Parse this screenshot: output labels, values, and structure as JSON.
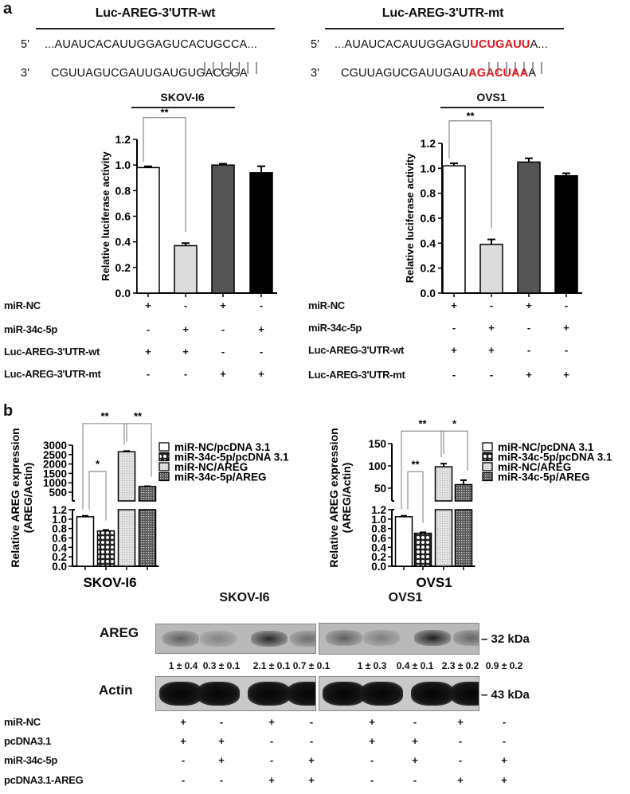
{
  "panel_a": {
    "label": "a",
    "wt": {
      "title": "Luc-AREG-3'UTR-wt",
      "five_prime": "5'",
      "seq5": "...AUAUCACAUUGGAGUCACUGCCA...",
      "three_prime": "3'",
      "seq3": "CGUUAGUCGAUUGAUGUGACGGA"
    },
    "mt": {
      "title": "Luc-AREG-3'UTR-mt",
      "five_prime": "5'",
      "seq5_pre": "...AUAUCACAUUGGAGU",
      "seq5_mut": "UCUGAUU",
      "seq5_post": "A...",
      "three_prime": "3'",
      "seq3_pre": "CGUUAGUCGAUUGAU",
      "seq3_mut": "AGACUAA",
      "seq3_post": "A"
    },
    "mutation_color": "#e8141b",
    "conditions": [
      {
        "label": "miR-NC",
        "values": [
          "+",
          "-",
          "+",
          "-"
        ]
      },
      {
        "label": "miR-34c-5p",
        "values": [
          "-",
          "+",
          "-",
          "+"
        ]
      },
      {
        "label": "Luc-AREG-3'UTR-wt",
        "values": [
          "+",
          "+",
          "-",
          "-"
        ]
      },
      {
        "label": "Luc-AREG-3'UTR-mt",
        "values": [
          "-",
          "-",
          "+",
          "+"
        ]
      }
    ]
  },
  "panel_b": {
    "label": "b",
    "legend": [
      {
        "label": "miR-NC/pcDNA 3.1",
        "pattern": "white"
      },
      {
        "label": "miR-34c-5p/pcDNA 3.1",
        "pattern": "checker"
      },
      {
        "label": "miR-NC/AREG",
        "pattern": "light-dots"
      },
      {
        "label": "miR-34c-5p/AREG",
        "pattern": "dark-hatch"
      }
    ]
  },
  "western": {
    "cell_lines": [
      "SKOV-I6",
      "OVS1"
    ],
    "areg_label": "AREG",
    "actin_label": "Actin",
    "areg_kda": "– 32 kDa",
    "actin_kda": "– 43 kDa",
    "quantification": [
      "1 ± 0.4",
      "0.3 ± 0.1",
      "2.1 ± 0.1",
      "0.7 ± 0.1",
      "1 ± 0.3",
      "0.4 ± 0.1",
      "2.3 ± 0.2",
      "0.9 ± 0.2"
    ],
    "areg_intensity": [
      1,
      0.3,
      2.1,
      0.7,
      1,
      0.4,
      2.3,
      0.9
    ],
    "conditions": [
      {
        "label": "miR-NC",
        "values": [
          "+",
          "-",
          "+",
          "-",
          "+",
          "-",
          "+",
          "-"
        ]
      },
      {
        "label": "pcDNA3.1",
        "values": [
          "+",
          "+",
          "-",
          "-",
          "+",
          "+",
          "-",
          "-"
        ]
      },
      {
        "label": "miR-34c-5p",
        "values": [
          "-",
          "+",
          "-",
          "+",
          "-",
          "+",
          "-",
          "+"
        ]
      },
      {
        "label": "pcDNA3.1-AREG",
        "values": [
          "-",
          "-",
          "+",
          "+",
          "-",
          "-",
          "+",
          "+"
        ]
      }
    ]
  },
  "chart_data": [
    {
      "type": "bar",
      "title": "SKOV-I6",
      "ylabel": "Relative luciferase activity",
      "ylim": [
        0,
        1.2
      ],
      "yticks": [
        "0.0",
        "0.2",
        "0.4",
        "0.6",
        "0.8",
        "1.0",
        "1.2"
      ],
      "values": [
        0.98,
        0.37,
        1.0,
        0.94
      ],
      "errors": [
        0.01,
        0.02,
        0.01,
        0.05
      ],
      "fills": [
        "#ffffff",
        "#dcdcdc",
        "#555555",
        "#000000"
      ],
      "significance": [
        {
          "from": 0,
          "to": 1,
          "label": "**",
          "level": 1.37
        }
      ]
    },
    {
      "type": "bar",
      "title": "OVS1",
      "ylabel": "Relative luciferase activity",
      "ylim": [
        0,
        1.2
      ],
      "yticks": [
        "0.0",
        "0.2",
        "0.4",
        "0.6",
        "0.8",
        "1.0",
        "1.2"
      ],
      "values": [
        1.02,
        0.39,
        1.05,
        0.94
      ],
      "errors": [
        0.02,
        0.04,
        0.03,
        0.02
      ],
      "fills": [
        "#ffffff",
        "#dcdcdc",
        "#555555",
        "#000000"
      ],
      "significance": [
        {
          "from": 0,
          "to": 1,
          "label": "**",
          "level": 1.38
        }
      ]
    },
    {
      "type": "bar",
      "xlabel": "SKOV-I6",
      "ylabel": "Relative  AREG expression",
      "ylabel2": "(AREG/Actin)",
      "broken_axis": true,
      "ylim_lower": [
        0,
        1.2
      ],
      "ylim_upper": [
        500,
        3000
      ],
      "yticks_lower": [
        "0.0",
        "0.2",
        "0.4",
        "0.6",
        "0.8",
        "1.0",
        "1.2"
      ],
      "yticks_upper": [
        "500",
        "1000",
        "1500",
        "2000",
        "2500",
        "3000"
      ],
      "values": [
        1.05,
        0.75,
        2650,
        800
      ],
      "errors": [
        0.02,
        0.02,
        40,
        15
      ],
      "significance": [
        {
          "from": 0,
          "to": 2,
          "label": "**",
          "level": 4150
        },
        {
          "from": 2,
          "to": 3,
          "label": "**",
          "level": 4150
        },
        {
          "from": 0,
          "to": 1,
          "label": "*",
          "level": 1600
        }
      ]
    },
    {
      "type": "bar",
      "xlabel": "OVS1",
      "ylabel": "Relative  AREG expression",
      "ylabel2": "(AREG/Actin)",
      "broken_axis": true,
      "ylim_lower": [
        0,
        1.2
      ],
      "ylim_upper": [
        50,
        150
      ],
      "yticks_lower": [
        "0.0",
        "0.2",
        "0.4",
        "0.6",
        "0.8",
        "1.0",
        "1.2"
      ],
      "yticks_upper": [
        "50",
        "100",
        "150"
      ],
      "values": [
        1.05,
        0.7,
        98,
        58
      ],
      "errors": [
        0.02,
        0.02,
        7,
        10
      ],
      "significance": [
        {
          "from": 0,
          "to": 2,
          "label": "**",
          "level": 178
        },
        {
          "from": 2,
          "to": 3,
          "label": "*",
          "level": 178
        },
        {
          "from": 0,
          "to": 1,
          "label": "**",
          "level": 87
        }
      ]
    }
  ]
}
